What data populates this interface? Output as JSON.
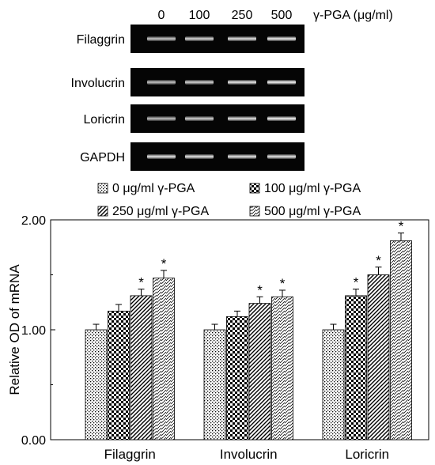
{
  "gel": {
    "lane_labels": [
      "0",
      "100",
      "250",
      "500"
    ],
    "treatment_label": "γ-PGA (μg/ml)",
    "rows": [
      {
        "gene": "Filaggrin",
        "intensity": [
          0.8,
          0.86,
          0.9,
          0.95
        ]
      },
      {
        "gene": "Involucrin",
        "intensity": [
          0.78,
          0.84,
          0.93,
          0.98
        ]
      },
      {
        "gene": "Loricrin",
        "intensity": [
          0.76,
          0.84,
          0.9,
          0.98
        ]
      },
      {
        "gene": "GAPDH",
        "intensity": [
          0.92,
          0.92,
          0.92,
          0.92
        ]
      }
    ]
  },
  "chart_data": {
    "type": "bar",
    "categories": [
      "Filaggrin",
      "Involucrin",
      "Loricrin"
    ],
    "series": [
      {
        "name": "0 μg/ml γ-PGA",
        "pattern": "dots",
        "values": [
          1.0,
          1.0,
          1.0
        ],
        "errors": [
          0.05,
          0.05,
          0.05
        ],
        "significant": [
          false,
          false,
          false
        ]
      },
      {
        "name": "100 μg/ml γ-PGA",
        "pattern": "checker",
        "values": [
          1.17,
          1.12,
          1.31
        ],
        "errors": [
          0.06,
          0.05,
          0.06
        ],
        "significant": [
          false,
          false,
          true
        ]
      },
      {
        "name": "250 μg/ml γ-PGA",
        "pattern": "diagonal",
        "values": [
          1.31,
          1.24,
          1.5
        ],
        "errors": [
          0.06,
          0.06,
          0.07
        ],
        "significant": [
          true,
          true,
          true
        ]
      },
      {
        "name": "500 μg/ml γ-PGA",
        "pattern": "fine-dash",
        "values": [
          1.47,
          1.3,
          1.81
        ],
        "errors": [
          0.07,
          0.06,
          0.07
        ],
        "significant": [
          true,
          true,
          true
        ]
      }
    ],
    "significance_marker": "*",
    "ylabel": "Relative OD of mRNA",
    "xlabel": "",
    "ylim": [
      0,
      2
    ],
    "yticks": [
      "0.00",
      "1.00",
      "2.00"
    ],
    "legend_position": "top",
    "grid": false
  }
}
